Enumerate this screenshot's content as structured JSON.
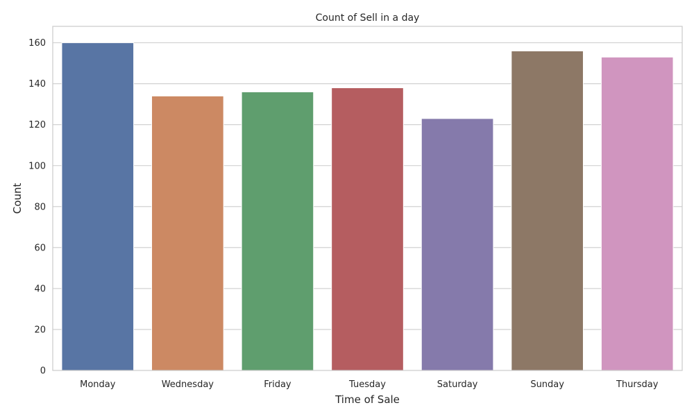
{
  "chart_data": {
    "type": "bar",
    "title": "Count of Sell in a day",
    "xlabel": "Time of Sale",
    "ylabel": "Count",
    "categories": [
      "Monday",
      "Wednesday",
      "Friday",
      "Tuesday",
      "Saturday",
      "Sunday",
      "Thursday"
    ],
    "values": [
      160,
      134,
      136,
      138,
      123,
      156,
      153
    ],
    "colors": [
      "#5875a4",
      "#cc8963",
      "#5f9e6e",
      "#b55d60",
      "#857aab",
      "#8d7866",
      "#d095bf"
    ],
    "ylim": [
      0,
      168
    ],
    "yticks": [
      0,
      20,
      40,
      60,
      80,
      100,
      120,
      140,
      160
    ],
    "ytick_labels": [
      "0",
      "20",
      "40",
      "60",
      "80",
      "100",
      "120",
      "140",
      "160"
    ],
    "grid": "horizontal",
    "legend": "none"
  }
}
